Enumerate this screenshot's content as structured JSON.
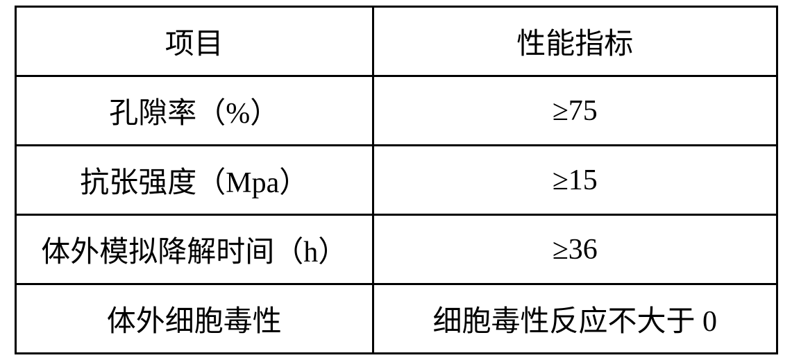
{
  "table": {
    "border_color": "#000000",
    "border_width": 3,
    "background_color": "#ffffff",
    "text_color": "#000000",
    "font_size": 42,
    "font_family": "SimSun",
    "columns": [
      {
        "key": "item",
        "width_pct": 47,
        "align": "center"
      },
      {
        "key": "spec",
        "width_pct": 53,
        "align": "center"
      }
    ],
    "rows": [
      {
        "item": "项目",
        "spec": "性能指标"
      },
      {
        "item": "孔隙率（%）",
        "spec": "≥75"
      },
      {
        "item": "抗张强度（Mpa）",
        "spec": "≥15"
      },
      {
        "item": "体外模拟降解时间（h）",
        "spec": "≥36"
      },
      {
        "item": "体外细胞毒性",
        "spec": "细胞毒性反应不大于 0"
      }
    ]
  }
}
